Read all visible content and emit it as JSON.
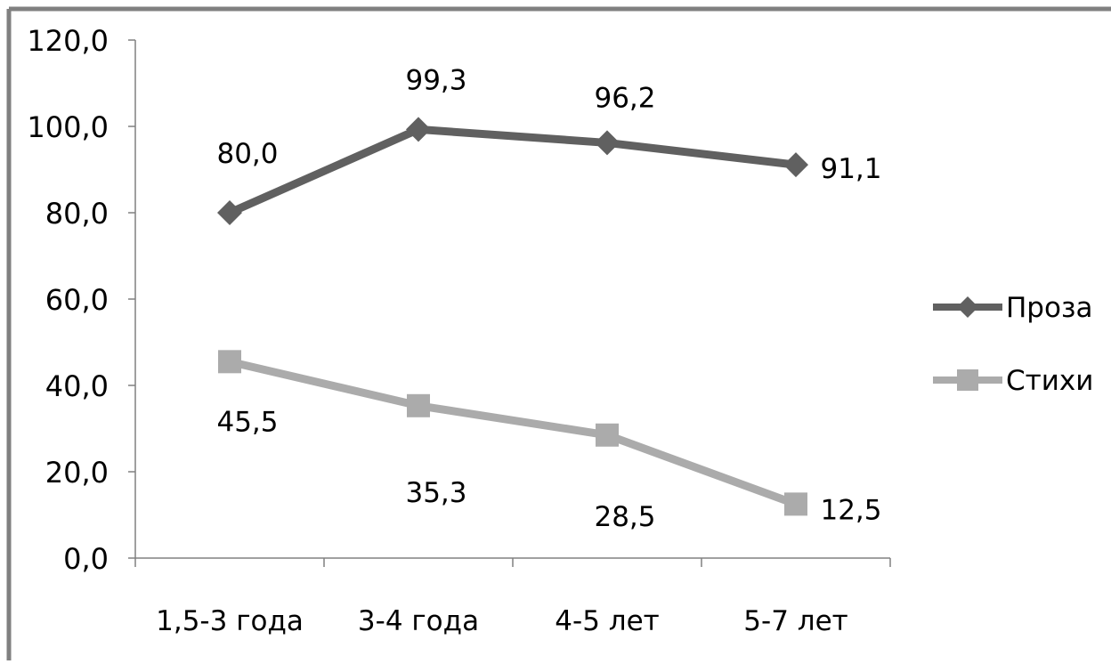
{
  "chart_data": {
    "type": "line",
    "categories": [
      "1,5-3 года",
      "3-4 года",
      "4-5 лет",
      "5-7 лет"
    ],
    "series": [
      {
        "name": "Проза",
        "values": [
          80.0,
          99.3,
          96.2,
          91.1
        ],
        "labels": [
          "80,0",
          "99,3",
          "96,2",
          "91,1"
        ],
        "color": "#606060",
        "marker": "diamond"
      },
      {
        "name": "Стихи",
        "values": [
          45.5,
          35.3,
          28.5,
          12.5
        ],
        "labels": [
          "45,5",
          "35,3",
          "28,5",
          "12,5"
        ],
        "color": "#ababab",
        "marker": "square"
      }
    ],
    "ylim": [
      0,
      120
    ],
    "yticks": [
      0,
      20,
      40,
      60,
      80,
      100,
      120
    ],
    "ytick_labels": [
      "0,0",
      "20,0",
      "40,0",
      "60,0",
      "80,0",
      "100,0",
      "120,0"
    ],
    "grid": false,
    "legend_position": "right"
  }
}
